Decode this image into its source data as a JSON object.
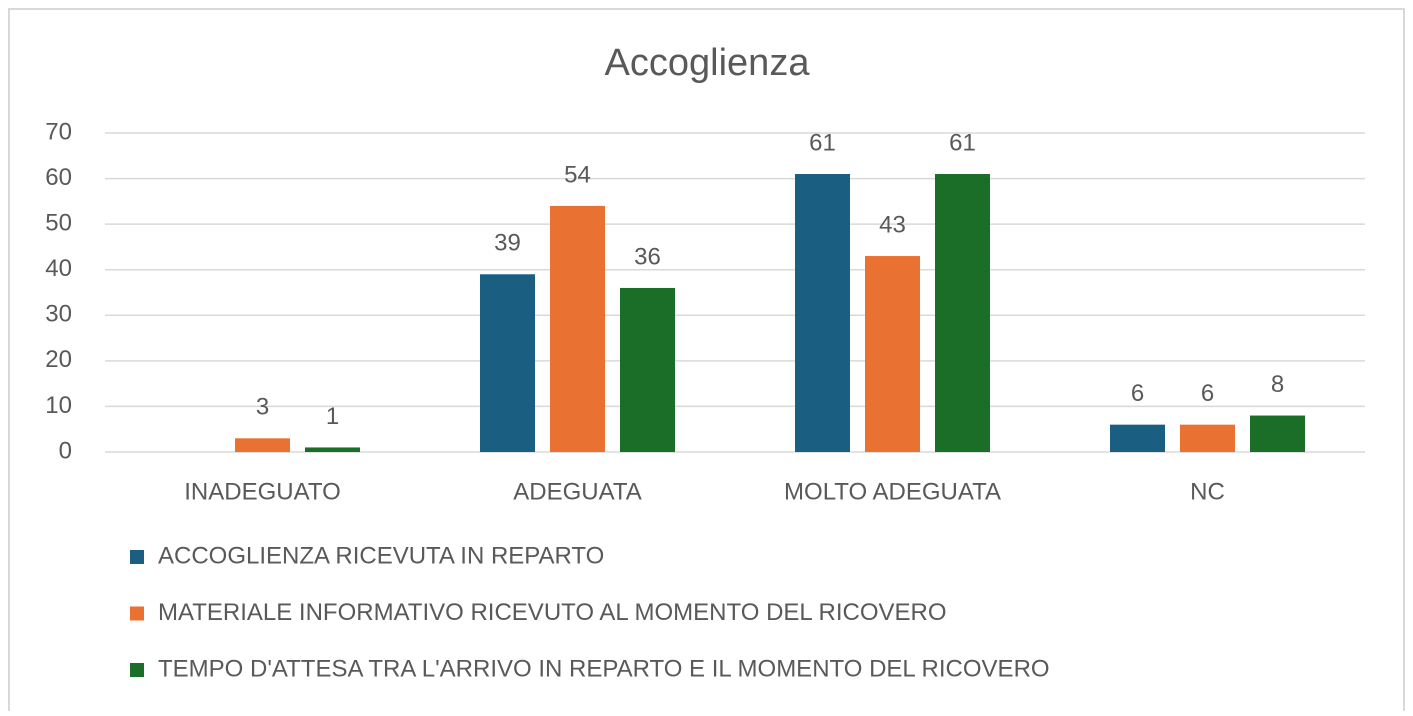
{
  "chart_data": {
    "type": "bar",
    "title": "Accoglienza",
    "categories": [
      "INADEGUATO",
      "ADEGUATA",
      "MOLTO ADEGUATA",
      "NC"
    ],
    "series": [
      {
        "name": "ACCOGLIENZA RICEVUTA IN REPARTO",
        "color": "#1a5f82",
        "values": [
          null,
          39,
          61,
          6
        ]
      },
      {
        "name": "MATERIALE INFORMATIVO RICEVUTO AL MOMENTO DEL RICOVERO",
        "color": "#e97132",
        "values": [
          3,
          54,
          43,
          6
        ]
      },
      {
        "name": "TEMPO D'ATTESA TRA L'ARRIVO IN REPARTO E IL MOMENTO DEL RICOVERO",
        "color": "#1a6e27",
        "values": [
          1,
          36,
          61,
          8
        ]
      }
    ],
    "ylim": [
      0,
      70
    ],
    "yticks": [
      0,
      10,
      20,
      30,
      40,
      50,
      60,
      70
    ],
    "grid": true,
    "legend": "bottom"
  }
}
